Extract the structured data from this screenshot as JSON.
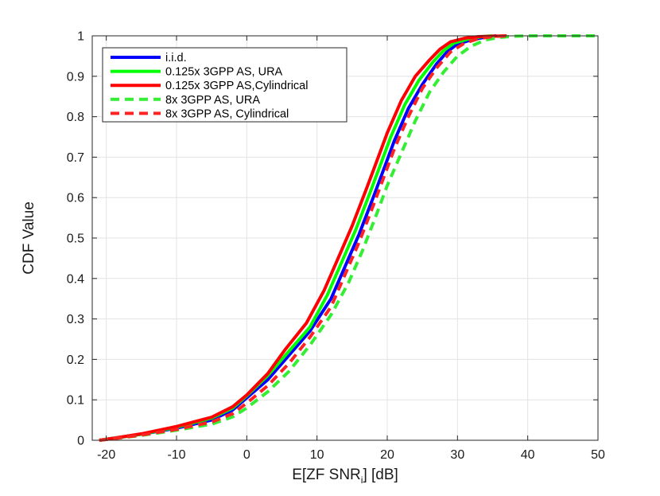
{
  "chart_data": {
    "type": "line",
    "title": "",
    "xlabel": {
      "main": "E[ZF SNR",
      "sub": "i",
      "tail": "] [dB]"
    },
    "ylabel": "CDF Value",
    "xlim": [
      -22,
      50
    ],
    "ylim": [
      0,
      1
    ],
    "xticks": [
      -20,
      -10,
      0,
      10,
      20,
      30,
      40,
      50
    ],
    "yticks": [
      0,
      0.1,
      0.2,
      0.3,
      0.4,
      0.5,
      0.6,
      0.7,
      0.8,
      0.9,
      1
    ],
    "xtick_labels": [
      "-20",
      "-10",
      "0",
      "10",
      "20",
      "30",
      "40",
      "50"
    ],
    "ytick_labels": [
      "0",
      "0.1",
      "0.2",
      "0.3",
      "0.4",
      "0.5",
      "0.6",
      "0.7",
      "0.8",
      "0.9",
      "1"
    ],
    "grid": true,
    "legend_position": "top-left",
    "series": [
      {
        "name": "i.i.d.",
        "color": "#0000ff",
        "dash": "solid",
        "x": [
          -21,
          -19,
          -15,
          -10,
          -5,
          -2,
          0,
          3,
          6,
          9,
          12,
          14,
          16,
          18,
          19.5,
          21,
          23,
          25,
          27,
          28.5,
          30,
          32,
          34,
          35.5
        ],
        "y": [
          0,
          0.005,
          0.015,
          0.03,
          0.05,
          0.075,
          0.105,
          0.15,
          0.21,
          0.27,
          0.35,
          0.43,
          0.51,
          0.6,
          0.67,
          0.74,
          0.82,
          0.88,
          0.93,
          0.96,
          0.98,
          0.99,
          0.997,
          1
        ]
      },
      {
        "name": "0.125x 3GPP AS, URA",
        "color": "#00ff00",
        "dash": "solid",
        "x": [
          -21,
          -19,
          -15,
          -10,
          -5,
          -2,
          0,
          3,
          6,
          9,
          11.5,
          13.5,
          15.5,
          17.5,
          19,
          20.5,
          22.5,
          24.5,
          26.5,
          28,
          29.5,
          31.5,
          33.5,
          35
        ],
        "y": [
          0,
          0.005,
          0.015,
          0.032,
          0.055,
          0.08,
          0.11,
          0.16,
          0.22,
          0.28,
          0.36,
          0.44,
          0.52,
          0.61,
          0.68,
          0.75,
          0.83,
          0.89,
          0.935,
          0.963,
          0.982,
          0.992,
          0.998,
          1
        ]
      },
      {
        "name": "0.125x 3GPP AS,Cylindrical",
        "color": "#ff0000",
        "dash": "solid",
        "x": [
          -21,
          -19,
          -15,
          -10,
          -5,
          -2,
          0,
          3,
          5.5,
          8.5,
          11,
          13,
          15,
          17,
          18.5,
          20,
          22,
          24,
          26,
          27.5,
          29,
          31,
          33,
          35,
          37
        ],
        "y": [
          0,
          0.005,
          0.016,
          0.034,
          0.057,
          0.083,
          0.112,
          0.165,
          0.225,
          0.29,
          0.37,
          0.45,
          0.53,
          0.62,
          0.69,
          0.76,
          0.84,
          0.9,
          0.94,
          0.967,
          0.985,
          0.994,
          0.998,
          0.999,
          1
        ]
      },
      {
        "name": "8x 3GPP AS, URA",
        "color": "#33ee33",
        "dash": "dashed",
        "x": [
          -21,
          -19,
          -15,
          -10,
          -5,
          -2,
          0,
          3,
          6,
          9,
          12,
          14.5,
          16.5,
          18.5,
          20,
          22,
          24,
          26,
          28,
          30,
          32,
          34,
          36,
          38,
          41,
          45,
          50
        ],
        "y": [
          0,
          0.004,
          0.012,
          0.025,
          0.04,
          0.058,
          0.08,
          0.12,
          0.17,
          0.235,
          0.31,
          0.39,
          0.47,
          0.56,
          0.63,
          0.71,
          0.79,
          0.86,
          0.91,
          0.95,
          0.975,
          0.99,
          0.996,
          0.999,
          1,
          1,
          1
        ]
      },
      {
        "name": "8x 3GPP AS, Cylindrical",
        "color": "#ff2222",
        "dash": "dashed",
        "x": [
          -21,
          -19,
          -15,
          -10,
          -5,
          -2,
          0,
          3,
          6,
          9,
          12,
          14,
          16,
          18,
          19.5,
          21,
          23,
          25,
          27,
          29,
          31,
          33,
          35,
          37
        ],
        "y": [
          0,
          0.004,
          0.013,
          0.027,
          0.045,
          0.066,
          0.092,
          0.135,
          0.19,
          0.255,
          0.33,
          0.41,
          0.49,
          0.58,
          0.65,
          0.72,
          0.8,
          0.87,
          0.92,
          0.96,
          0.982,
          0.993,
          0.998,
          1
        ]
      }
    ]
  }
}
